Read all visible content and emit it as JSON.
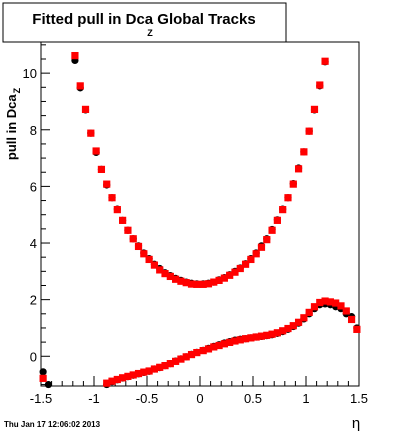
{
  "chart_data": {
    "type": "scatter",
    "title": "Fitted pull in Dca Global Tracks",
    "title_subscript": "Z",
    "xlabel": "η",
    "ylabel": "pull in Dca",
    "ylabel_subscript": "Z",
    "xlim": [
      -1.5,
      1.5
    ],
    "ylim": [
      -1.05,
      11.1
    ],
    "x_ticks": [
      -1.5,
      -1,
      -0.5,
      0,
      0.5,
      1,
      1.5
    ],
    "x_tick_labels": [
      "-1.5",
      "-1",
      "-0.5",
      "0",
      "0.5",
      "1",
      "1.5"
    ],
    "y_ticks": [
      0,
      2,
      4,
      6,
      8,
      10
    ],
    "y_tick_labels": [
      "0",
      "2",
      "4",
      "6",
      "8",
      "10"
    ],
    "grid": false,
    "legend": "none",
    "timestamp": "Thu Jan 17 12:06:02 2013",
    "series": [
      {
        "role": "upper-black",
        "color": "#000000",
        "marker": "circle",
        "x": [
          -1.18,
          -1.13,
          -1.08,
          -1.03,
          -0.98,
          -0.93,
          -0.88,
          -0.83,
          -0.78,
          -0.73,
          -0.68,
          -0.63,
          -0.58,
          -0.53,
          -0.48,
          -0.43,
          -0.38,
          -0.33,
          -0.28,
          -0.23,
          -0.18,
          -0.13,
          -0.08,
          -0.03,
          0.03,
          0.08,
          0.13,
          0.18,
          0.23,
          0.28,
          0.33,
          0.38,
          0.43,
          0.48,
          0.53,
          0.58,
          0.63,
          0.68,
          0.73,
          0.78,
          0.83,
          0.88,
          0.93,
          0.98,
          1.03,
          1.08,
          1.13,
          1.18
        ],
        "y": [
          10.45,
          9.48,
          8.7,
          7.88,
          7.2,
          6.6,
          6.05,
          5.6,
          5.2,
          4.8,
          4.45,
          4.15,
          3.9,
          3.65,
          3.45,
          3.25,
          3.1,
          2.95,
          2.85,
          2.75,
          2.68,
          2.62,
          2.58,
          2.56,
          2.56,
          2.58,
          2.62,
          2.7,
          2.78,
          2.88,
          3.0,
          3.12,
          3.27,
          3.45,
          3.65,
          3.9,
          4.15,
          4.48,
          4.82,
          5.2,
          5.6,
          6.1,
          6.65,
          7.22,
          7.95,
          8.7,
          9.55,
          10.4
        ]
      },
      {
        "role": "upper-red",
        "color": "#ff0000",
        "marker": "square",
        "x": [
          -1.18,
          -1.13,
          -1.08,
          -1.03,
          -0.98,
          -0.93,
          -0.88,
          -0.83,
          -0.78,
          -0.73,
          -0.68,
          -0.63,
          -0.58,
          -0.53,
          -0.48,
          -0.43,
          -0.38,
          -0.33,
          -0.28,
          -0.23,
          -0.18,
          -0.13,
          -0.08,
          -0.03,
          0.03,
          0.08,
          0.13,
          0.18,
          0.23,
          0.28,
          0.33,
          0.38,
          0.43,
          0.48,
          0.53,
          0.58,
          0.63,
          0.68,
          0.73,
          0.78,
          0.83,
          0.88,
          0.93,
          0.98,
          1.03,
          1.08,
          1.13,
          1.18
        ],
        "y": [
          10.62,
          9.55,
          8.72,
          7.88,
          7.25,
          6.6,
          6.08,
          5.6,
          5.18,
          4.8,
          4.45,
          4.15,
          3.88,
          3.62,
          3.42,
          3.22,
          3.05,
          2.92,
          2.82,
          2.72,
          2.65,
          2.6,
          2.55,
          2.54,
          2.54,
          2.56,
          2.62,
          2.68,
          2.76,
          2.86,
          2.97,
          3.1,
          3.25,
          3.42,
          3.62,
          3.85,
          4.12,
          4.45,
          4.8,
          5.18,
          5.6,
          6.08,
          6.62,
          7.22,
          7.95,
          8.72,
          9.58,
          10.42
        ]
      },
      {
        "role": "lower-black",
        "color": "#000000",
        "marker": "circle",
        "x": [
          -1.48,
          -1.43,
          -0.88,
          -0.83,
          -0.78,
          -0.73,
          -0.68,
          -0.63,
          -0.58,
          -0.53,
          -0.48,
          -0.43,
          -0.38,
          -0.33,
          -0.28,
          -0.23,
          -0.18,
          -0.13,
          -0.08,
          -0.03,
          0.03,
          0.08,
          0.13,
          0.18,
          0.23,
          0.28,
          0.33,
          0.38,
          0.43,
          0.48,
          0.53,
          0.58,
          0.63,
          0.68,
          0.73,
          0.78,
          0.83,
          0.88,
          0.93,
          0.98,
          1.03,
          1.08,
          1.13,
          1.18,
          1.23,
          1.28,
          1.33,
          1.38,
          1.43,
          1.48
        ],
        "y": [
          -0.55,
          -1.0,
          -1.0,
          -0.9,
          -0.83,
          -0.77,
          -0.72,
          -0.67,
          -0.62,
          -0.57,
          -0.53,
          -0.45,
          -0.4,
          -0.33,
          -0.26,
          -0.17,
          -0.09,
          -0.02,
          0.07,
          0.14,
          0.21,
          0.28,
          0.35,
          0.41,
          0.47,
          0.52,
          0.57,
          0.6,
          0.62,
          0.65,
          0.68,
          0.7,
          0.73,
          0.76,
          0.81,
          0.87,
          0.95,
          1.05,
          1.17,
          1.32,
          1.5,
          1.68,
          1.82,
          1.85,
          1.82,
          1.75,
          1.68,
          1.5,
          1.4,
          1.0
        ]
      },
      {
        "role": "lower-red",
        "color": "#ff0000",
        "marker": "square",
        "x": [
          -1.48,
          -0.88,
          -0.83,
          -0.78,
          -0.73,
          -0.68,
          -0.63,
          -0.58,
          -0.53,
          -0.48,
          -0.43,
          -0.38,
          -0.33,
          -0.28,
          -0.23,
          -0.18,
          -0.13,
          -0.08,
          -0.03,
          0.03,
          0.08,
          0.13,
          0.18,
          0.23,
          0.28,
          0.33,
          0.38,
          0.43,
          0.48,
          0.53,
          0.58,
          0.63,
          0.68,
          0.73,
          0.78,
          0.83,
          0.88,
          0.93,
          0.98,
          1.03,
          1.08,
          1.13,
          1.18,
          1.23,
          1.28,
          1.33,
          1.38,
          1.43,
          1.48
        ],
        "y": [
          -0.78,
          -0.95,
          -0.88,
          -0.82,
          -0.76,
          -0.71,
          -0.66,
          -0.61,
          -0.56,
          -0.52,
          -0.45,
          -0.39,
          -0.33,
          -0.26,
          -0.18,
          -0.1,
          -0.02,
          0.06,
          0.13,
          0.2,
          0.26,
          0.33,
          0.38,
          0.44,
          0.49,
          0.54,
          0.58,
          0.62,
          0.65,
          0.68,
          0.71,
          0.74,
          0.78,
          0.83,
          0.9,
          0.98,
          1.08,
          1.2,
          1.36,
          1.55,
          1.75,
          1.9,
          1.95,
          1.92,
          1.88,
          1.78,
          1.6,
          1.3,
          0.95
        ]
      }
    ]
  }
}
